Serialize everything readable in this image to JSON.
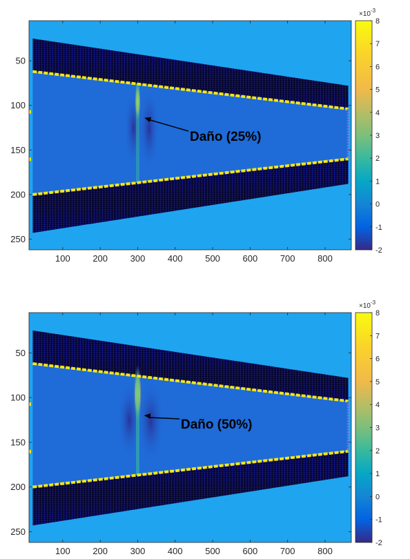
{
  "chart_data": [
    {
      "type": "heatmap",
      "title": "",
      "xlabel": "",
      "ylabel": "",
      "xlim": [
        10,
        870
      ],
      "ylim": [
        262,
        5
      ],
      "y_reversed": true,
      "xticks": [
        100,
        200,
        300,
        400,
        500,
        600,
        700,
        800
      ],
      "xtick_labels": [
        "100",
        "200",
        "300",
        "400",
        "500",
        "600",
        "700",
        "800"
      ],
      "yticks": [
        50,
        100,
        150,
        200,
        250
      ],
      "ytick_labels": [
        "50",
        "100",
        "150",
        "200",
        "250"
      ],
      "grid": false,
      "colorbar": {
        "range": [
          -2,
          8
        ],
        "ticks": [
          -2,
          -1,
          0,
          1,
          2,
          3,
          4,
          5,
          6,
          7,
          8
        ],
        "tick_labels": [
          "-2",
          "-1",
          "0",
          "1",
          "2",
          "3",
          "4",
          "5",
          "6",
          "7",
          "8"
        ],
        "exponent_label": "×10",
        "exponent_value": "-3",
        "colormap": "parula"
      },
      "structure": {
        "x_start": 20,
        "x_end": 862,
        "outer_top": [
          25,
          78
        ],
        "inner_top": [
          62,
          104
        ],
        "inner_bottom": [
          200,
          160
        ],
        "outer_bottom": [
          243,
          188
        ]
      },
      "damage": {
        "x": 300,
        "y_top": 76,
        "y_bottom": 188,
        "intensity": 0.25
      },
      "annotation": {
        "text": "Daño (25%)",
        "arrow_tip": [
          318,
          114
        ]
      },
      "colors": {
        "background": "#1fa4f0",
        "web": "#1f6bd8",
        "flange": "#0a0a3a",
        "edge": "#f5e614"
      }
    },
    {
      "type": "heatmap",
      "title": "",
      "xlabel": "",
      "ylabel": "",
      "xlim": [
        10,
        870
      ],
      "ylim": [
        262,
        5
      ],
      "y_reversed": true,
      "xticks": [
        100,
        200,
        300,
        400,
        500,
        600,
        700,
        800
      ],
      "xtick_labels": [
        "100",
        "200",
        "300",
        "400",
        "500",
        "600",
        "700",
        "800"
      ],
      "yticks": [
        50,
        100,
        150,
        200,
        250
      ],
      "ytick_labels": [
        "50",
        "100",
        "150",
        "200",
        "250"
      ],
      "grid": false,
      "colorbar": {
        "range": [
          -2,
          8
        ],
        "ticks": [
          -2,
          -1,
          0,
          1,
          2,
          3,
          4,
          5,
          6,
          7,
          8
        ],
        "tick_labels": [
          "-2",
          "-1",
          "0",
          "1",
          "2",
          "3",
          "4",
          "5",
          "6",
          "7",
          "8"
        ],
        "exponent_label": "×10",
        "exponent_value": "-3",
        "colormap": "parula"
      },
      "structure": {
        "x_start": 20,
        "x_end": 862,
        "outer_top": [
          25,
          78
        ],
        "inner_top": [
          62,
          104
        ],
        "inner_bottom": [
          200,
          160
        ],
        "outer_bottom": [
          243,
          188
        ]
      },
      "damage": {
        "x": 300,
        "y_top": 76,
        "y_bottom": 188,
        "intensity": 0.5
      },
      "annotation": {
        "text": "Daño (50%)",
        "arrow_tip": [
          317,
          120
        ]
      },
      "colors": {
        "background": "#1fa4f0",
        "web": "#1f6bd8",
        "flange": "#0a0a3a",
        "edge": "#f5e614"
      }
    }
  ]
}
